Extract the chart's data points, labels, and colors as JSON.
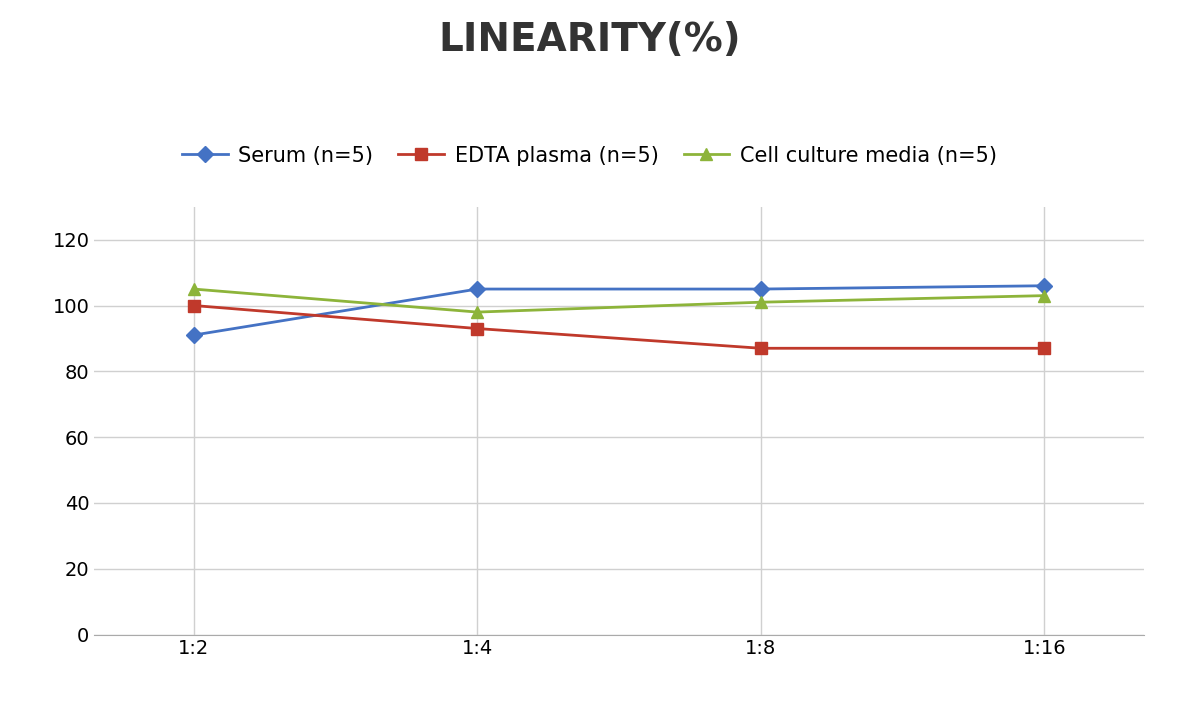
{
  "title": "LINEARITY(%)",
  "x_labels": [
    "1:2",
    "1:4",
    "1:8",
    "1:16"
  ],
  "x_positions": [
    0,
    1,
    2,
    3
  ],
  "series": [
    {
      "label": "Serum (n=5)",
      "values": [
        91,
        105,
        105,
        106
      ],
      "color": "#4472C4",
      "marker": "D",
      "marker_size": 8,
      "linewidth": 2
    },
    {
      "label": "EDTA plasma (n=5)",
      "values": [
        100,
        93,
        87,
        87
      ],
      "color": "#C0392B",
      "marker": "s",
      "marker_size": 8,
      "linewidth": 2
    },
    {
      "label": "Cell culture media (n=5)",
      "values": [
        105,
        98,
        101,
        103
      ],
      "color": "#8DB43A",
      "marker": "^",
      "marker_size": 9,
      "linewidth": 2
    }
  ],
  "ylim": [
    0,
    130
  ],
  "yticks": [
    0,
    20,
    40,
    60,
    80,
    100,
    120
  ],
  "grid_color": "#D0D0D0",
  "background_color": "#FFFFFF",
  "title_fontsize": 28,
  "tick_fontsize": 14,
  "legend_fontsize": 15
}
